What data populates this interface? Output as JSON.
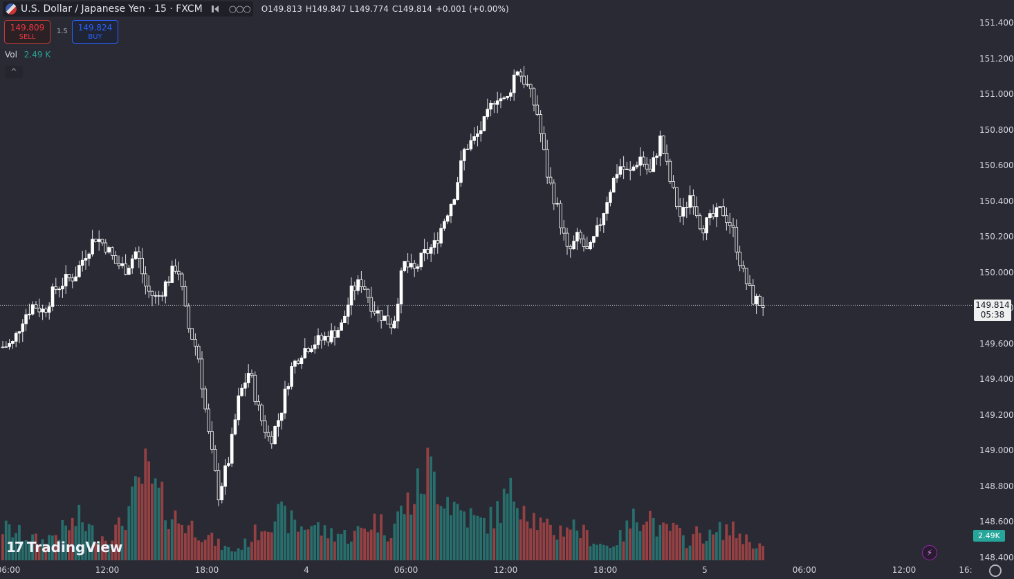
{
  "header": {
    "symbol_title": "U.S. Dollar / Japanese Yen · 15 · FXCM",
    "ohlc": {
      "open": "O149.813",
      "high": "H149.847",
      "low": "L149.774",
      "close": "C149.814",
      "change": "+0.001 (+0.00%)"
    }
  },
  "trade": {
    "sell_price": "149.809",
    "sell_label": "SELL",
    "spread": "1.5",
    "buy_price": "149.824",
    "buy_label": "BUY"
  },
  "volume_legend": {
    "label": "Vol",
    "value": "2.49 K"
  },
  "collapse_glyph": "^",
  "price_axis": [
    "151.400",
    "151.200",
    "151.000",
    "150.800",
    "150.600",
    "150.400",
    "150.200",
    "150.000",
    "149.800",
    "149.600",
    "149.400",
    "149.200",
    "149.000",
    "148.800",
    "148.600",
    "148.400"
  ],
  "time_axis": [
    "06:00",
    "12:00",
    "18:00",
    "4",
    "06:00",
    "12:00",
    "18:00",
    "5",
    "06:00",
    "12:00",
    "16:"
  ],
  "last_price": {
    "price": "149.814",
    "countdown": "05:38"
  },
  "volume_badge": "2.49K",
  "logo": {
    "mark": "17",
    "text": "TradingView"
  },
  "colors": {
    "up": "#ffffff",
    "down": "#ffffff",
    "vol_up": "#26a69a",
    "vol_down": "#ef5350",
    "background": "#292a33"
  },
  "chart_data": {
    "type": "candlestick",
    "x_ticks": [
      "06:00",
      "12:00",
      "18:00",
      "4",
      "06:00",
      "12:00",
      "18:00",
      "5",
      "06:00",
      "12:00",
      "16:"
    ],
    "y_ticks": [
      148.4,
      148.6,
      148.8,
      149.0,
      149.2,
      149.4,
      149.6,
      149.8,
      150.0,
      150.2,
      150.4,
      150.6,
      150.8,
      151.0,
      151.2,
      151.4
    ],
    "ylim": [
      148.37,
      151.5
    ],
    "interval": "15",
    "last_price": 149.814,
    "close_path": [
      149.58,
      149.6,
      149.75,
      149.82,
      149.78,
      149.9,
      149.95,
      149.98,
      150.1,
      150.2,
      150.15,
      150.05,
      150.02,
      150.12,
      149.9,
      149.85,
      149.95,
      150.05,
      149.7,
      149.55,
      149.1,
      148.75,
      148.95,
      149.3,
      149.45,
      149.2,
      149.05,
      149.2,
      149.45,
      149.55,
      149.6,
      149.62,
      149.65,
      149.7,
      149.9,
      149.95,
      149.8,
      149.75,
      149.7,
      150.05,
      150.0,
      150.1,
      150.15,
      150.3,
      150.45,
      150.7,
      150.75,
      150.85,
      151.0,
      150.95,
      151.15,
      151.05,
      150.9,
      150.55,
      150.35,
      150.1,
      150.2,
      150.1,
      150.25,
      150.45,
      150.6,
      150.55,
      150.65,
      150.55,
      150.75,
      150.5,
      150.3,
      150.45,
      150.25,
      150.3,
      150.35,
      150.25,
      150.0,
      149.85,
      149.82
    ],
    "volume_path": [
      0.35,
      0.3,
      0.25,
      0.2,
      0.28,
      0.35,
      0.45,
      0.3,
      0.25,
      0.35,
      0.6,
      0.95,
      0.7,
      0.5,
      0.4,
      0.35,
      0.25,
      0.15,
      0.1,
      0.2,
      0.35,
      0.5,
      0.45,
      0.35,
      0.4,
      0.3,
      0.3,
      0.25,
      0.35,
      0.45,
      0.3,
      0.55,
      0.7,
      1.0,
      0.8,
      0.6,
      0.5,
      0.4,
      0.45,
      0.65,
      0.75,
      0.5,
      0.35,
      0.3,
      0.4,
      0.3,
      0.2,
      0.15,
      0.25,
      0.45,
      0.55,
      0.3,
      0.35,
      0.2,
      0.3,
      0.25,
      0.35,
      0.3,
      0.2,
      0.15
    ]
  }
}
